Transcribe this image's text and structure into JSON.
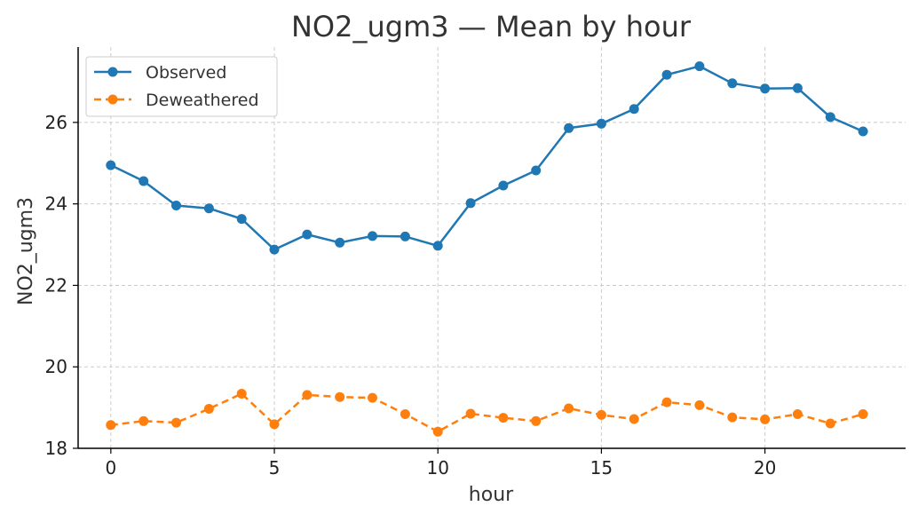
{
  "chart_data": {
    "type": "line",
    "title": "NO2_ugm3 — Mean by hour",
    "xlabel": "hour",
    "ylabel": "NO2_ugm3",
    "xlim": [
      -1,
      24.3
    ],
    "ylim": [
      18,
      27.85
    ],
    "xticks": [
      0,
      5,
      10,
      15,
      20
    ],
    "yticks": [
      18,
      20,
      22,
      24,
      26
    ],
    "grid": true,
    "legend_position": "top-left",
    "x": [
      0,
      1,
      2,
      3,
      4,
      5,
      6,
      7,
      8,
      9,
      10,
      11,
      12,
      13,
      14,
      15,
      16,
      17,
      18,
      19,
      20,
      21,
      22,
      23
    ],
    "series": [
      {
        "name": "Observed",
        "color": "#1f77b4",
        "line_style": "solid",
        "values": [
          24.95,
          24.56,
          23.96,
          23.89,
          23.63,
          22.88,
          23.25,
          23.05,
          23.21,
          23.2,
          22.97,
          24.02,
          24.45,
          24.82,
          25.86,
          25.97,
          26.33,
          27.17,
          27.38,
          26.96,
          26.83,
          26.84,
          26.13,
          25.78
        ]
      },
      {
        "name": "Deweathered",
        "color": "#ff7f0e",
        "line_style": "dashed",
        "values": [
          18.57,
          18.67,
          18.63,
          18.97,
          19.34,
          18.59,
          19.31,
          19.26,
          19.24,
          18.84,
          18.41,
          18.85,
          18.75,
          18.67,
          18.98,
          18.82,
          18.72,
          19.13,
          19.06,
          18.76,
          18.71,
          18.84,
          18.61,
          18.84
        ]
      }
    ]
  }
}
